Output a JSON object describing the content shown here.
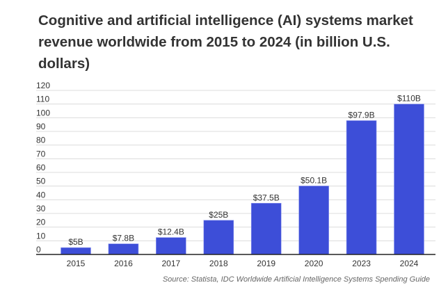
{
  "chart_data": {
    "type": "bar",
    "title": "Cognitive and artificial intelligence (AI) systems market revenue worldwide from 2015 to 2024 (in billion U.S. dollars)",
    "categories": [
      "2015",
      "2016",
      "2017",
      "2018",
      "2019",
      "2020",
      "2023",
      "2024"
    ],
    "values": [
      5,
      7.8,
      12.4,
      25,
      37.5,
      50.1,
      97.9,
      110
    ],
    "data_labels": [
      "$5B",
      "$7.8B",
      "$12.4B",
      "$25B",
      "$37.5B",
      "$50.1B",
      "$97.9B",
      "$110B"
    ],
    "xlabel": "",
    "ylabel": "",
    "ylim": [
      0,
      120
    ],
    "yticks": [
      0,
      10,
      20,
      30,
      40,
      50,
      60,
      70,
      80,
      90,
      100,
      110,
      120
    ],
    "grid": true,
    "bar_color": "#3d4ed8",
    "source": "Source: Statista, IDC Worldwide Artificial Intelligence Systems Spending Guide"
  }
}
